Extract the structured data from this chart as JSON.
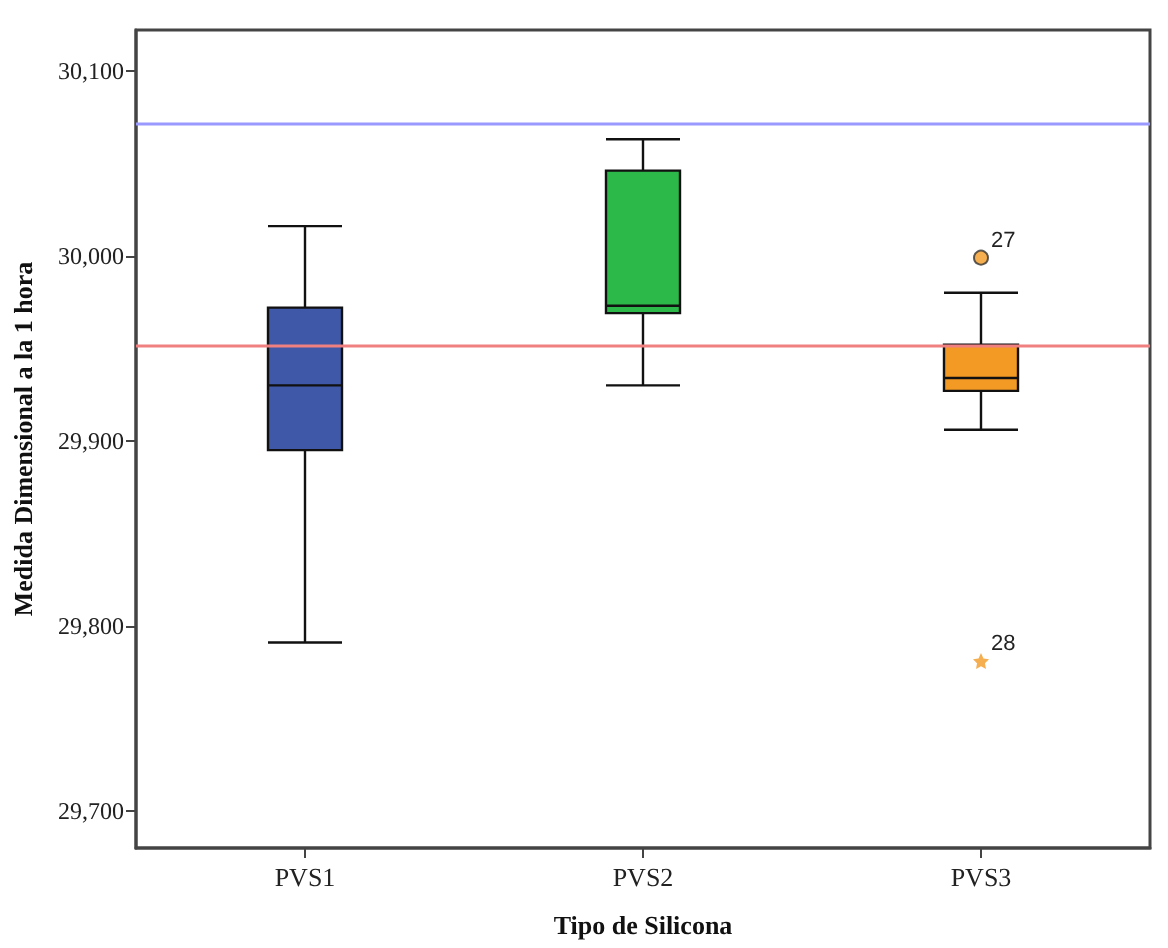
{
  "chart_data": {
    "type": "box",
    "xlabel": "Tipo de Silicona",
    "ylabel": "Medida Dimensional a la 1 hora",
    "categories": [
      "PVS1",
      "PVS2",
      "PVS3"
    ],
    "colors": [
      "#3f58a8",
      "#2db84a",
      "#f39a24"
    ],
    "boxes": [
      {
        "low": 29791,
        "q1": 29895,
        "median": 29930,
        "q3": 29972,
        "high": 30016
      },
      {
        "low": 29930,
        "q1": 29969,
        "median": 29973,
        "q3": 30046,
        "high": 30063
      },
      {
        "low": 29906,
        "q1": 29927,
        "median": 29934,
        "q3": 29952,
        "high": 29980
      }
    ],
    "series": [
      {
        "type": "scatter",
        "x": [
          "PVS3"
        ],
        "values": [
          29999
        ],
        "marker": "circle",
        "color": "#f39a24"
      },
      {
        "type": "scatter",
        "x": [
          "PVS3"
        ],
        "values": [
          29781
        ],
        "marker": "star",
        "color": "#f39a24"
      }
    ],
    "ylim": [
      29680,
      30122
    ],
    "yticks": [
      {
        "value": 29700,
        "label": "29,700"
      },
      {
        "value": 29800,
        "label": "29,800"
      },
      {
        "value": 29900,
        "label": "29,900"
      },
      {
        "value": 30000,
        "label": "30,000"
      },
      {
        "value": 30100,
        "label": "30,100"
      }
    ],
    "ref_lines": [
      {
        "axis": "y",
        "value": 30072,
        "color": "#9999ff"
      },
      {
        "axis": "y",
        "value": 29952,
        "color": "#f08080"
      }
    ],
    "annotations": [
      {
        "text": "27",
        "x": "PVS3",
        "y": 29999
      },
      {
        "text": "28",
        "x": "PVS3",
        "y": 29781
      }
    ],
    "grid": false
  }
}
